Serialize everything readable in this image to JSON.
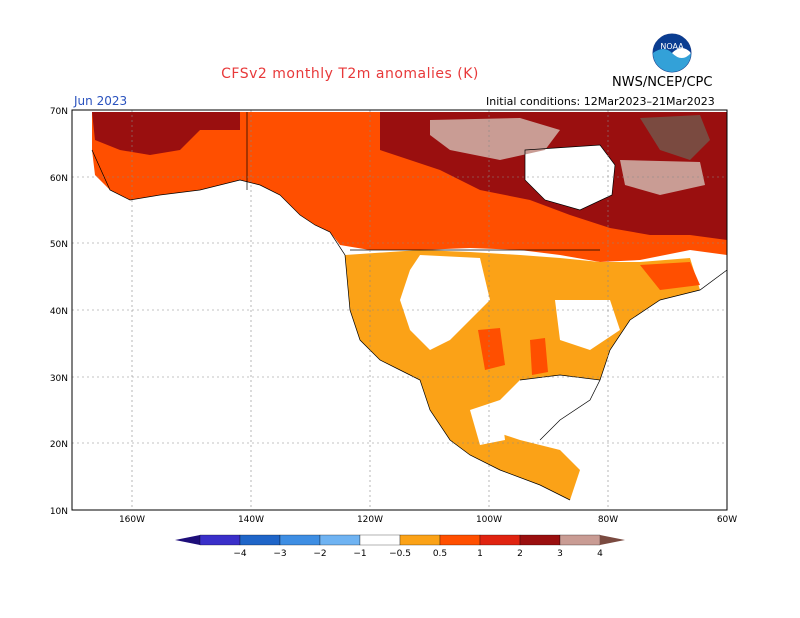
{
  "title": "CFSv2 monthly T2m anomalies (K)",
  "org": "NWS/NCEP/CPC",
  "month": "Jun 2023",
  "initial_conditions": "Initial conditions: 12Mar2023–21Mar2023",
  "logo_text": "NOAA",
  "map": {
    "lon_range": [
      -170,
      -60
    ],
    "lat_range": [
      10,
      70
    ],
    "lat_labels": [
      "70N",
      "60N",
      "50N",
      "40N",
      "30N",
      "20N",
      "10N"
    ],
    "lon_labels": [
      "160W",
      "140W",
      "120W",
      "100W",
      "80W",
      "60W"
    ]
  },
  "colorbar": {
    "labels": [
      "−4",
      "−3",
      "−2",
      "−1",
      "−0.5",
      "0.5",
      "1",
      "2",
      "3",
      "4"
    ],
    "colors": [
      "#1e0e7a",
      "#3a2fc9",
      "#1f65c8",
      "#3e8ee3",
      "#6fb3f2",
      "#ffffff",
      "#fba217",
      "#ff4f00",
      "#e02310",
      "#9a0f0f",
      "#c99c94",
      "#7a4a40"
    ]
  }
}
